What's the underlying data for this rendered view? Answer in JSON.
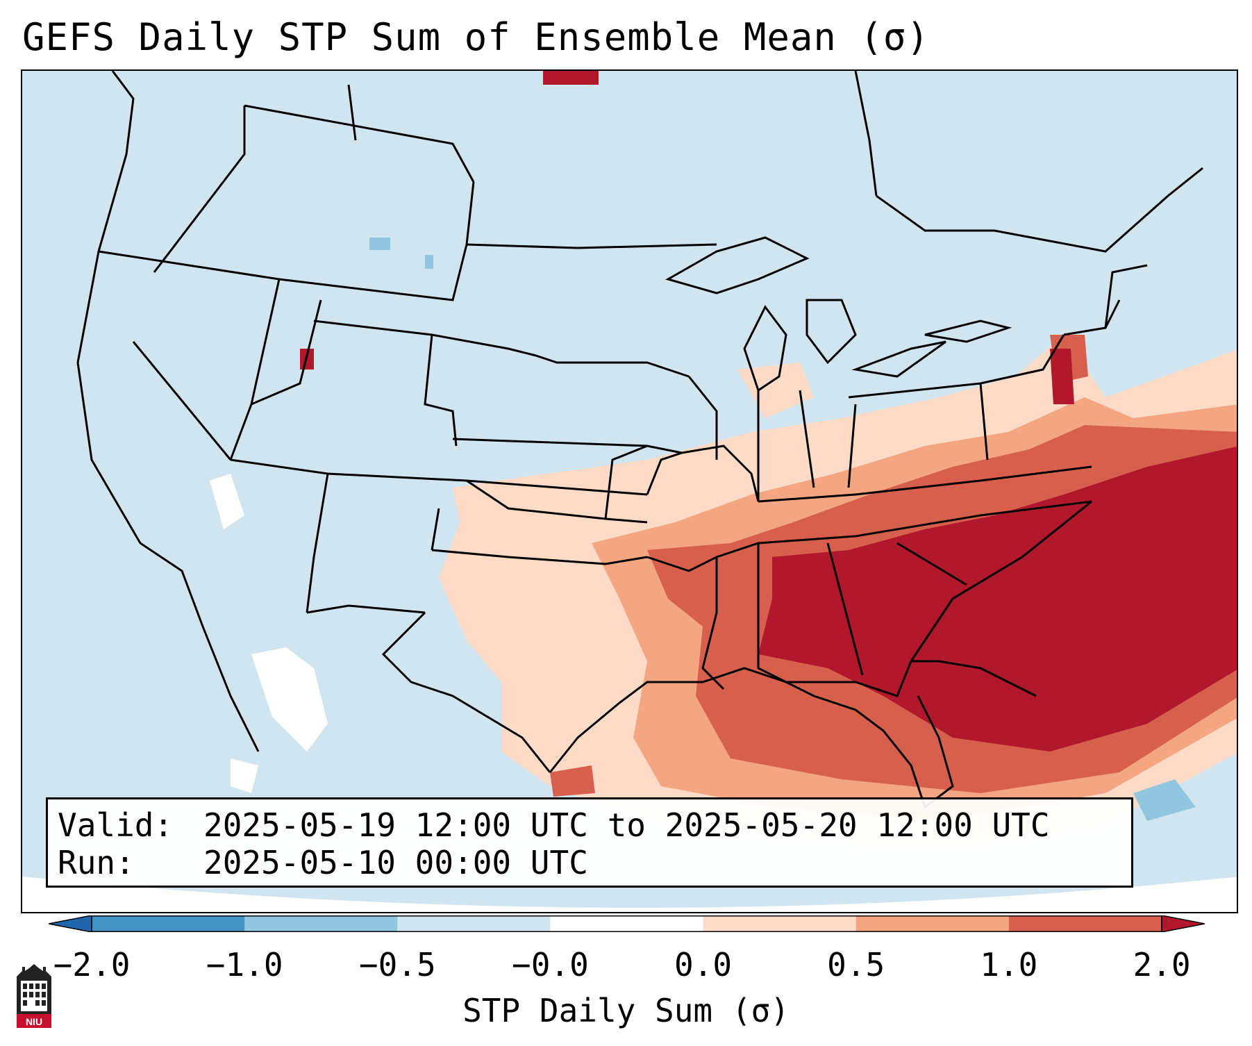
{
  "title": "GEFS Daily STP Sum of Ensemble Mean (σ)",
  "info": {
    "valid_label": "Valid:",
    "valid_value": "2025-05-19 12:00 UTC to 2025-05-20 12:00 UTC",
    "run_label": "Run:",
    "run_value": "2025-05-10 00:00 UTC"
  },
  "colorbar": {
    "label": "STP Daily Sum (σ)",
    "ticks": [
      "−2.0",
      "−1.0",
      "−0.5",
      "−0.0",
      "0.0",
      "0.5",
      "1.0",
      "2.0"
    ],
    "bins": [
      {
        "range": "< -2.0",
        "color": "#2166ac"
      },
      {
        "range": "-2.0 to -1.0",
        "color": "#4393c3"
      },
      {
        "range": "-1.0 to -0.5",
        "color": "#92c5de"
      },
      {
        "range": "-0.5 to -0.0",
        "color": "#d1e5f0"
      },
      {
        "range": "-0.0 to 0.0",
        "color": "#ffffff"
      },
      {
        "range": "0.0 to 0.5",
        "color": "#fddbc7"
      },
      {
        "range": "0.5 to 1.0",
        "color": "#f4a582"
      },
      {
        "range": "1.0 to 2.0",
        "color": "#d6604d"
      },
      {
        "range": "> 2.0",
        "color": "#b2182b"
      }
    ]
  },
  "logo": {
    "text": "NIU",
    "color": "#c8102e"
  },
  "map": {
    "projection": "Lambert Conformal, CONUS",
    "field": "STP daily sum anomaly (σ)",
    "highlight_region": "Southeastern US (Gulf Coast, Southeast, Mid-Atlantic) ≥ 2.0σ",
    "background_color": "#d1e5f0",
    "border_color": "#000000"
  }
}
